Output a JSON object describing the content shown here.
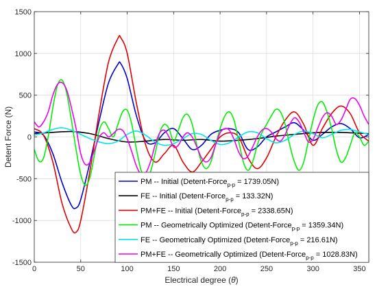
{
  "chart_data": {
    "type": "line",
    "xlabel": "Electrical degree",
    "xlabel_symbol": "θ",
    "ylabel": "Detent Force (N)",
    "xlim": [
      0,
      360
    ],
    "ylim": [
      -1500,
      1500
    ],
    "xticks": [
      0,
      50,
      100,
      150,
      200,
      250,
      300,
      350
    ],
    "yticks": [
      -1500,
      -1000,
      -500,
      0,
      500,
      1000,
      1500
    ],
    "grid": true,
    "legend_placement": "bottom-right",
    "series": [
      {
        "name": "PM -- Initial (Detent-Force",
        "subscript": "p-p",
        "value_text": "= 1739.05N)",
        "color": "#0000cc",
        "x": [
          0,
          10,
          20,
          30,
          40,
          45,
          50,
          60,
          70,
          80,
          90,
          93,
          100,
          110,
          120,
          130,
          140,
          150,
          160,
          170,
          180,
          190,
          200,
          210,
          220,
          230,
          240,
          250,
          260,
          270,
          280,
          290,
          300,
          310,
          320,
          330,
          340,
          350,
          360
        ],
        "y": [
          60,
          20,
          -200,
          -550,
          -820,
          -850,
          -750,
          -300,
          200,
          650,
          870,
          880,
          700,
          250,
          -50,
          -70,
          50,
          100,
          -20,
          -150,
          -100,
          30,
          80,
          100,
          50,
          -150,
          -120,
          0,
          60,
          120,
          170,
          80,
          -40,
          30,
          120,
          160,
          100,
          -10,
          30
        ]
      },
      {
        "name": "FE -- Initial (Detent-Force",
        "subscript": "p-p",
        "value_text": "= 133.32N)",
        "color": "#000000",
        "x": [
          0,
          20,
          40,
          60,
          80,
          100,
          120,
          140,
          160,
          180,
          200,
          220,
          240,
          260,
          280,
          300,
          320,
          340,
          360
        ],
        "y": [
          40,
          55,
          65,
          40,
          -20,
          -60,
          -50,
          -30,
          -40,
          -30,
          -50,
          -40,
          -20,
          10,
          30,
          50,
          55,
          50,
          40
        ]
      },
      {
        "name": "PM+FE -- Initial (Detent-Force",
        "subscript": "p-p",
        "value_text": "= 2338.65N)",
        "color": "#dd0000",
        "x": [
          0,
          10,
          20,
          30,
          40,
          45,
          50,
          60,
          70,
          80,
          90,
          93,
          100,
          110,
          120,
          130,
          140,
          150,
          160,
          170,
          180,
          190,
          200,
          210,
          220,
          230,
          240,
          250,
          260,
          270,
          280,
          290,
          300,
          310,
          320,
          330,
          340,
          350,
          360
        ],
        "y": [
          100,
          20,
          -300,
          -800,
          -1100,
          -1140,
          -1000,
          -400,
          300,
          900,
          1180,
          1190,
          1000,
          400,
          -100,
          -300,
          -200,
          -100,
          -300,
          -420,
          -300,
          -150,
          0,
          50,
          0,
          -250,
          -380,
          -250,
          0,
          200,
          300,
          150,
          -100,
          100,
          280,
          370,
          280,
          50,
          -50
        ]
      },
      {
        "name": "PM -- Geometrically Optimized (Detent-Force",
        "subscript": "p-p",
        "value_text": "= 1359.34N)",
        "color": "#00ee00",
        "x": [
          0,
          5,
          10,
          15,
          20,
          25,
          30,
          35,
          40,
          45,
          50,
          55,
          60,
          65,
          70,
          75,
          80,
          85,
          90,
          95,
          100,
          105,
          110,
          115,
          120,
          125,
          130,
          135,
          140,
          145,
          150,
          155,
          160,
          165,
          170,
          175,
          180,
          185,
          190,
          195,
          200,
          205,
          210,
          215,
          220,
          225,
          230,
          235,
          240,
          245,
          250,
          255,
          260,
          265,
          270,
          275,
          280,
          285,
          290,
          295,
          300,
          305,
          310,
          315,
          320,
          325,
          330,
          335,
          340,
          345,
          350,
          355,
          360
        ],
        "y": [
          -150,
          -290,
          -250,
          0,
          350,
          620,
          680,
          520,
          200,
          -150,
          -450,
          -580,
          -480,
          -200,
          80,
          180,
          100,
          0,
          150,
          300,
          320,
          150,
          -150,
          -400,
          -500,
          -420,
          -200,
          50,
          150,
          100,
          -50,
          80,
          230,
          270,
          150,
          -100,
          -300,
          -380,
          -300,
          -100,
          100,
          250,
          300,
          200,
          -50,
          -300,
          -400,
          -300,
          -100,
          50,
          150,
          250,
          330,
          300,
          150,
          -100,
          -300,
          -400,
          -300,
          -50,
          200,
          380,
          420,
          300,
          100,
          -150,
          -300,
          -250,
          -100,
          50,
          0,
          -100,
          -50
        ]
      },
      {
        "name": "FE -- Geometrically Optimized (Detent-Force",
        "subscript": "p-p",
        "value_text": "= 216.61N)",
        "color": "#00e5ee",
        "x": [
          0,
          10,
          20,
          30,
          40,
          50,
          60,
          70,
          80,
          90,
          100,
          110,
          120,
          130,
          140,
          150,
          160,
          170,
          180,
          190,
          200,
          210,
          220,
          230,
          240,
          250,
          260,
          270,
          280,
          290,
          300,
          310,
          320,
          330,
          340,
          350,
          360
        ],
        "y": [
          20,
          50,
          90,
          110,
          80,
          30,
          -20,
          -60,
          -80,
          -50,
          30,
          70,
          20,
          -60,
          -100,
          -80,
          -20,
          40,
          30,
          -40,
          -90,
          -70,
          0,
          60,
          50,
          -20,
          -70,
          -40,
          30,
          70,
          40,
          -10,
          30,
          80,
          90,
          60,
          30
        ]
      },
      {
        "name": "PM+FE -- Geometrically Optimized (Detent-Force",
        "subscript": "p-p",
        "value_text": "= 1028.83N)",
        "color": "#ee00ee",
        "x": [
          0,
          5,
          10,
          15,
          20,
          25,
          30,
          35,
          40,
          45,
          50,
          55,
          60,
          65,
          70,
          75,
          80,
          85,
          90,
          95,
          100,
          105,
          110,
          115,
          120,
          125,
          130,
          135,
          140,
          145,
          150,
          155,
          160,
          165,
          170,
          175,
          180,
          185,
          190,
          195,
          200,
          205,
          210,
          215,
          220,
          225,
          230,
          235,
          240,
          245,
          250,
          255,
          260,
          265,
          270,
          275,
          280,
          285,
          290,
          295,
          300,
          305,
          310,
          315,
          320,
          325,
          330,
          335,
          340,
          345,
          350,
          355,
          360
        ],
        "y": [
          180,
          120,
          180,
          300,
          500,
          630,
          650,
          560,
          350,
          100,
          -200,
          -330,
          -300,
          -150,
          0,
          50,
          0,
          40,
          90,
          80,
          -20,
          -180,
          -350,
          -450,
          -430,
          -300,
          -100,
          50,
          80,
          0,
          -120,
          -100,
          0,
          50,
          0,
          -120,
          -250,
          -300,
          -250,
          -100,
          50,
          100,
          80,
          -30,
          -180,
          -260,
          -230,
          -120,
          0,
          80,
          100,
          60,
          -20,
          -50,
          30,
          150,
          230,
          180,
          60,
          -60,
          -30,
          100,
          230,
          290,
          250,
          150,
          200,
          320,
          450,
          460,
          380,
          250,
          150
        ]
      }
    ]
  }
}
